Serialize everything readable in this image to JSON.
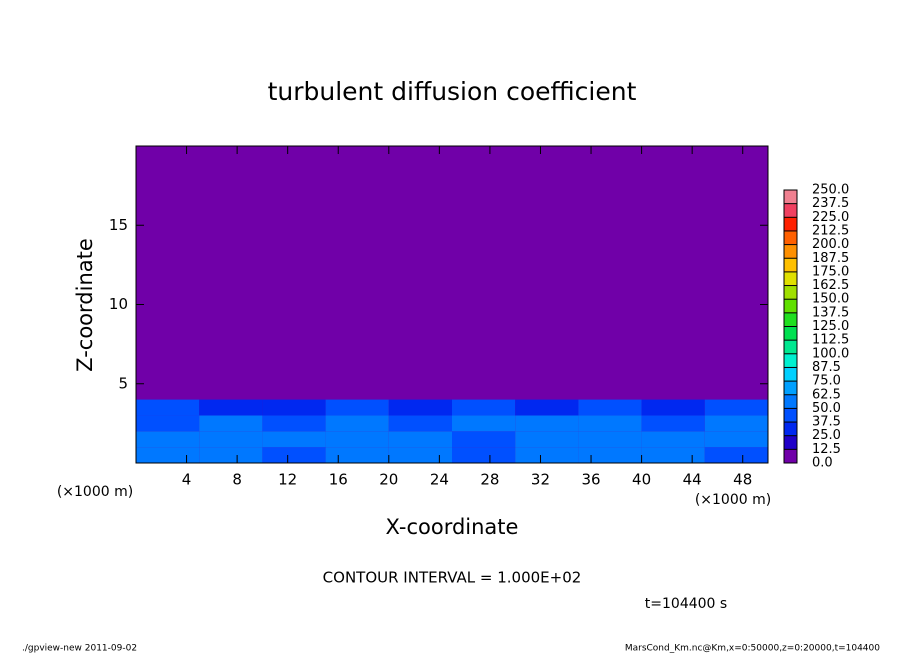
{
  "chart_data": {
    "type": "contour",
    "title": "turbulent diffusion coefficient",
    "x_label": "X-coordinate",
    "y_label": "Z-coordinate",
    "x_unit": "(×1000 m)",
    "y_unit": "(×1000 m)",
    "contour_interval": "CONTOUR INTERVAL = 1.000E+02",
    "time_label": "t=104400 s",
    "footer_left": "./gpview-new   2011-09-02",
    "footer_right": "MarsCond_Km.nc@Km,x=0:50000,z=0:20000,t=104400",
    "xlim": [
      0,
      50
    ],
    "xticks": [
      4,
      8,
      12,
      16,
      20,
      24,
      28,
      32,
      36,
      40,
      44,
      48
    ],
    "ylim": [
      0,
      20
    ],
    "yticks": [
      5,
      10,
      15
    ],
    "field": {
      "x_edges": [
        0,
        5,
        10,
        15,
        20,
        25,
        30,
        35,
        40,
        45,
        50
      ],
      "z_edges": [
        0,
        1,
        2,
        3,
        4
      ],
      "values": [
        [
          55,
          50,
          45,
          50,
          55,
          45,
          50,
          55,
          50,
          45
        ],
        [
          50,
          55,
          50,
          60,
          50,
          45,
          55,
          50,
          55,
          50
        ],
        [
          45,
          50,
          45,
          55,
          45,
          50,
          50,
          55,
          45,
          50
        ],
        [
          40,
          35,
          30,
          45,
          35,
          40,
          35,
          40,
          30,
          40
        ]
      ]
    },
    "colorbar": {
      "levels": [
        {
          "value": 0,
          "label": "0.0"
        },
        12.5,
        {
          "value": 25,
          "label": "25.0"
        },
        37.5,
        {
          "value": 50,
          "label": "50.0"
        },
        62.5,
        {
          "value": 75,
          "label": "75.0"
        },
        87.5,
        {
          "value": 100,
          "label": "100.0"
        },
        112.5,
        {
          "value": 125,
          "label": "125.0"
        },
        137.5,
        {
          "value": 150,
          "label": "150.0"
        },
        162.5,
        {
          "value": 175,
          "label": "175.0"
        },
        187.5,
        {
          "value": 200,
          "label": "200.0"
        },
        212.5,
        {
          "value": 225,
          "label": "225.0"
        },
        237.5,
        {
          "value": 250,
          "label": "250.0"
        }
      ],
      "colors": [
        "#7000a8",
        "#2000c8",
        "#0028f0",
        "#0050ff",
        "#0078ff",
        "#00a0ff",
        "#00d0ff",
        "#00f0d0",
        "#00e890",
        "#00e050",
        "#20e020",
        "#60e000",
        "#a0e000",
        "#e0e000",
        "#ffc000",
        "#ff9000",
        "#ff6000",
        "#ff2000",
        "#f04060",
        "#f08090"
      ]
    }
  }
}
